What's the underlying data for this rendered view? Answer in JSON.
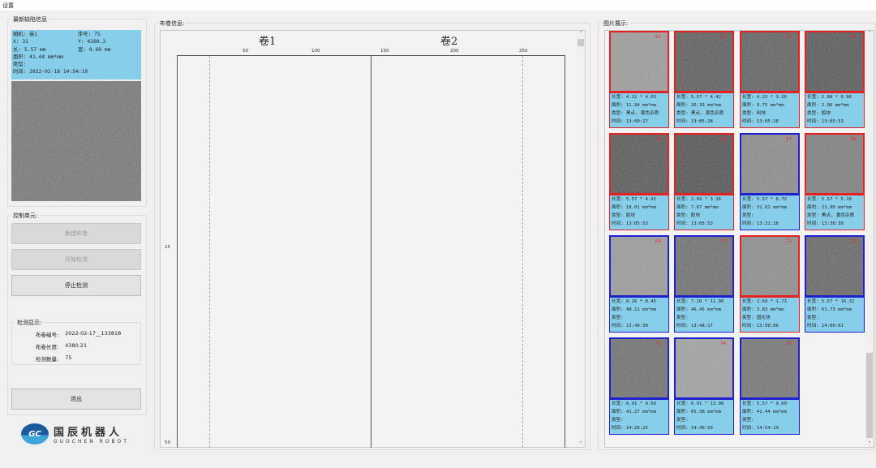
{
  "window": {
    "title": "设置"
  },
  "latest": {
    "title": "最新缺陷信息",
    "camera": "相机: 卷1",
    "serial": "序号: 75",
    "x": "X:    31",
    "y": "Y:    4260.3",
    "length": "长:  5.57 mm",
    "width": "宽:   9.60 mm",
    "area": "面积: 41.44 mm*mm",
    "type": "类型:",
    "time": "时间: 2022-02-18  14:54:19"
  },
  "control": {
    "title": "控制单元:",
    "new_roll": "新建布卷",
    "start": "开始检测",
    "stop": "停止检测",
    "exit": "退出"
  },
  "detect": {
    "title": "检测显示:",
    "roll_id_label": "布卷编号:",
    "roll_id": "2022-02-17__133818",
    "roll_len_label": "布卷长度:",
    "roll_len": "4380.21",
    "count_label": "检测数量:",
    "count": "75"
  },
  "logo": {
    "cn": "国辰机器人",
    "en": "GUOCHEN ROBOT",
    "mark": "GC"
  },
  "roll": {
    "title": "布卷信息:",
    "roll1": "卷1",
    "roll2": "卷2",
    "xticks": [
      "50",
      "100",
      "150",
      "200",
      "250"
    ],
    "yticks": [
      "25",
      "50"
    ]
  },
  "gallery": {
    "title": "图片展示:",
    "cards": [
      {
        "num": "61",
        "color": "#e82020",
        "shade": "#9a9a9a",
        "size": "长宽: 4.22 * 4.03",
        "area": "面积: 11.94 mm*mm",
        "type": "类型: 黑点, 黄色杂质",
        "time": "时间: 13:00:27"
      },
      {
        "num": "62",
        "color": "#e82020",
        "shade": "#555",
        "size": "长宽: 5.57 * 4.42",
        "area": "面积: 20.33 mm*mm",
        "type": "类型: 黑点, 黄色杂质",
        "time": "时间: 13:05:28"
      },
      {
        "num": "63",
        "color": "#e82020",
        "shade": "#5a5a5a",
        "size": "长宽: 4.22 * 3.26",
        "area": "面积: 9.75 mm*mm",
        "type": "类型: 料块",
        "time": "时间: 13:05:28"
      },
      {
        "num": "64",
        "color": "#e82020",
        "shade": "#505050",
        "size": "长宽: 2.88 * 0.96",
        "area": "面积: 2.06 mm*mm",
        "type": "类型: 胶块",
        "time": "时间: 13:05:53"
      },
      {
        "num": "65",
        "color": "#e82020",
        "shade": "#505050",
        "size": "长宽: 5.57 * 4.42",
        "area": "面积: 18.01 mm*mm",
        "type": "类型: 胶块",
        "time": "时间: 13:05:53"
      },
      {
        "num": "66",
        "color": "#e82020",
        "shade": "#4a4a4a",
        "size": "长宽: 2.69 * 3.26",
        "area": "面积: 7.67 mm*mm",
        "type": "类型: 胶块",
        "time": "时间: 13:05:53"
      },
      {
        "num": "67",
        "color": "#2020d0",
        "shade": "#888",
        "size": "长宽: 5.57 * 6.72",
        "area": "面积: 31.81 mm*mm",
        "type": "类型:",
        "time": "时间: 13:31:28"
      },
      {
        "num": "68",
        "color": "#e82020",
        "shade": "#7a7a7a",
        "size": "长宽: 5.57 * 5.18",
        "area": "面积: 21.90 mm*mm",
        "type": "类型: 黑点, 黄色杂质",
        "time": "时间: 13:38:30"
      },
      {
        "num": "69",
        "color": "#2020d0",
        "shade": "#999",
        "size": "长宽: 8.26 * 8.45",
        "area": "面积: 48.11 mm*mm",
        "type": "类型:",
        "time": "时间: 13:40:30"
      },
      {
        "num": "70",
        "color": "#2020d0",
        "shade": "#6a6a6a",
        "size": "长宽: 7.10 * 11.90",
        "area": "面积: 46.45 mm*mm",
        "type": "类型:",
        "time": "时间: 13:48:17"
      },
      {
        "num": "71",
        "color": "#e82020",
        "shade": "#8a8a8a",
        "size": "长宽: 2.69 * 1.73",
        "area": "面积: 3.83 mm*mm",
        "type": "类型: 固化块",
        "time": "时间: 13:50:06"
      },
      {
        "num": "72",
        "color": "#2020d0",
        "shade": "#606060",
        "size": "长宽: 5.57 * 16.32",
        "area": "面积: 61.73 mm*mm",
        "type": "类型:",
        "time": "时间: 14:00:01"
      },
      {
        "num": "73",
        "color": "#2020d0",
        "shade": "#6a6a6a",
        "size": "长宽: 6.91 * 9.60",
        "area": "面积: 41.27 mm*mm",
        "type": "类型:",
        "time": "时间: 14:26:25"
      },
      {
        "num": "74",
        "color": "#2020d0",
        "shade": "#a0a0a0",
        "size": "长宽: 6.91 * 13.06",
        "area": "面积: 65.38 mm*mm",
        "type": "类型:",
        "time": "时间: 14:40:50"
      },
      {
        "num": "75",
        "color": "#2020d0",
        "shade": "#707070",
        "size": "长宽: 5.57 * 9.60",
        "area": "面积: 41.44 mm*mm",
        "type": "类型:",
        "time": "时间: 14:54:19"
      }
    ]
  }
}
